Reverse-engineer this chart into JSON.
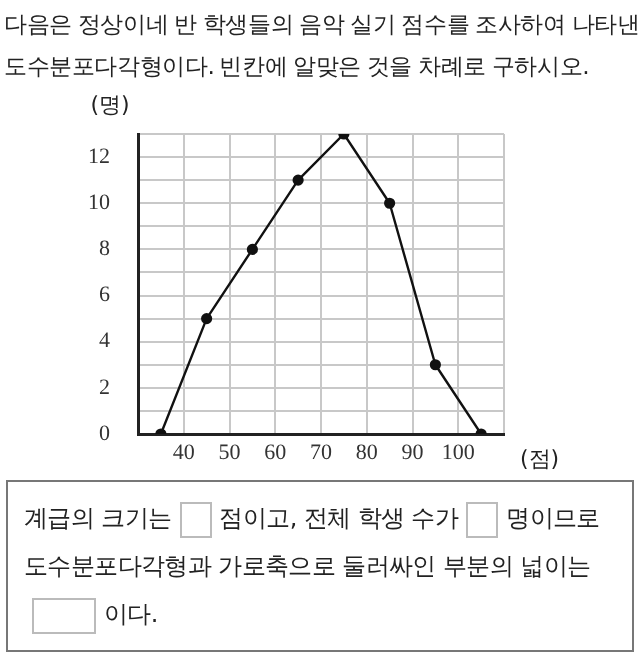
{
  "chart_data": {
    "type": "line",
    "title": "다음은 정상이네 반 학생들의 음악 실기 점수를 조사하여 나타낸 도수분포다각형이다. 빈칸에 알맞은 것을 차례로 구하시오.",
    "ylabel": "(명)",
    "xlabel": "(점)",
    "x": [
      35,
      45,
      55,
      65,
      75,
      85,
      95,
      105
    ],
    "series": [
      {
        "color": "#111111",
        "values": [
          0,
          5,
          8,
          11,
          13,
          10,
          3,
          0
        ]
      }
    ],
    "xlim": [
      30,
      110
    ],
    "xticks": [
      40,
      50,
      60,
      70,
      80,
      90,
      100,
      {
        "value": 110,
        "label": null
      }
    ],
    "ylim": [
      0,
      13
    ],
    "yticks": [
      0,
      {
        "value": 1,
        "label": null
      },
      2,
      {
        "value": 3,
        "label": null
      },
      4,
      {
        "value": 5,
        "label": null
      },
      6,
      {
        "value": 7,
        "label": null
      },
      8,
      {
        "value": 9,
        "label": null
      },
      10,
      {
        "value": 11,
        "label": null
      },
      12,
      {
        "value": 13,
        "label": null
      }
    ],
    "grid": true,
    "legend": false,
    "marker": "circle",
    "line_style": "solid",
    "annotations": [
      "계급의 크기는",
      "점이고, 전체 학생 수가",
      "명이므로 도수분포다각형과 가로축으로 둘러싸인 부분의 넓이는",
      "이다."
    ]
  }
}
